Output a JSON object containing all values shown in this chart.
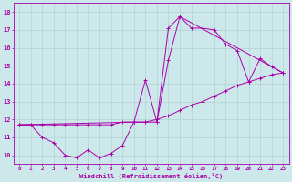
{
  "xlabel": "Windchill (Refroidissement éolien,°C)",
  "background_color": "#cce8ea",
  "line_color": "#aa00aa",
  "grid_color": "#aacccc",
  "xlim": [
    -0.5,
    23.5
  ],
  "ylim": [
    9.5,
    18.5
  ],
  "xticks": [
    0,
    1,
    2,
    3,
    4,
    5,
    6,
    7,
    8,
    9,
    10,
    11,
    12,
    13,
    14,
    15,
    16,
    17,
    18,
    19,
    20,
    21,
    22,
    23
  ],
  "yticks": [
    10,
    11,
    12,
    13,
    14,
    15,
    16,
    17,
    18
  ],
  "series1_x": [
    0,
    1,
    2,
    3,
    4,
    5,
    6,
    7,
    8,
    9,
    10,
    11,
    12,
    13,
    14,
    15,
    16,
    17,
    18,
    19,
    20,
    21,
    22,
    23
  ],
  "series1_y": [
    11.7,
    11.7,
    11.0,
    10.7,
    10.0,
    9.85,
    10.3,
    9.85,
    10.1,
    10.55,
    11.85,
    11.85,
    11.85,
    17.1,
    17.75,
    17.1,
    17.1,
    17.0,
    16.2,
    15.85,
    14.1,
    15.4,
    14.95,
    14.6
  ],
  "series2_x": [
    0,
    1,
    2,
    3,
    4,
    5,
    6,
    7,
    8,
    9,
    10,
    11,
    12,
    13,
    14,
    15,
    16,
    17,
    18,
    19,
    20,
    21,
    22,
    23
  ],
  "series2_y": [
    11.7,
    11.7,
    11.7,
    11.7,
    11.7,
    11.7,
    11.7,
    11.7,
    11.7,
    11.85,
    11.85,
    11.85,
    12.0,
    12.2,
    12.5,
    12.8,
    13.0,
    13.3,
    13.6,
    13.9,
    14.1,
    14.3,
    14.5,
    14.6
  ],
  "series3_x": [
    0,
    10,
    11,
    12,
    13,
    14,
    23
  ],
  "series3_y": [
    11.7,
    11.85,
    14.2,
    11.85,
    15.3,
    17.75,
    14.6
  ]
}
